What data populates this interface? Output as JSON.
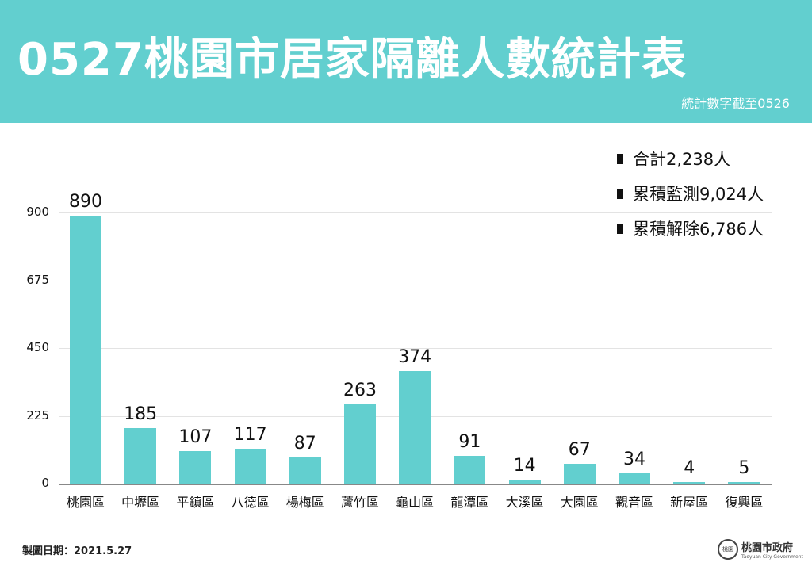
{
  "header": {
    "title": "0527桃園市居家隔離人數統計表",
    "subtitle": "統計數字截至0526",
    "color": "#62cfcf"
  },
  "legend": [
    {
      "label": "合計2,238人"
    },
    {
      "label": "累積監測9,024人"
    },
    {
      "label": "累積解除6,786人"
    }
  ],
  "footer": {
    "date": "製圖日期：2021.5.27",
    "logo_main": "桃園市政府",
    "logo_sub": "Taoyuan City Government",
    "logo_badge": "桃園"
  },
  "chart_data": {
    "type": "bar",
    "title": "0527桃園市居家隔離人數統計表",
    "subtitle": "統計數字截至0526",
    "categories": [
      "桃園區",
      "中壢區",
      "平鎮區",
      "八德區",
      "楊梅區",
      "蘆竹區",
      "龜山區",
      "龍潭區",
      "大溪區",
      "大園區",
      "觀音區",
      "新屋區",
      "復興區"
    ],
    "values": [
      890,
      185,
      107,
      117,
      87,
      263,
      374,
      91,
      14,
      67,
      34,
      4,
      5
    ],
    "yticks": [
      "0",
      "225",
      "450",
      "675",
      "900"
    ],
    "ylim": [
      0,
      900
    ],
    "xlabel": "",
    "ylabel": "",
    "grid": true,
    "bar_color": "#62cfcf",
    "data_labels": true,
    "legend_position": "top-right",
    "annotations": [
      "合計2,238人",
      "累積監測9,024人",
      "累積解除6,786人"
    ]
  }
}
